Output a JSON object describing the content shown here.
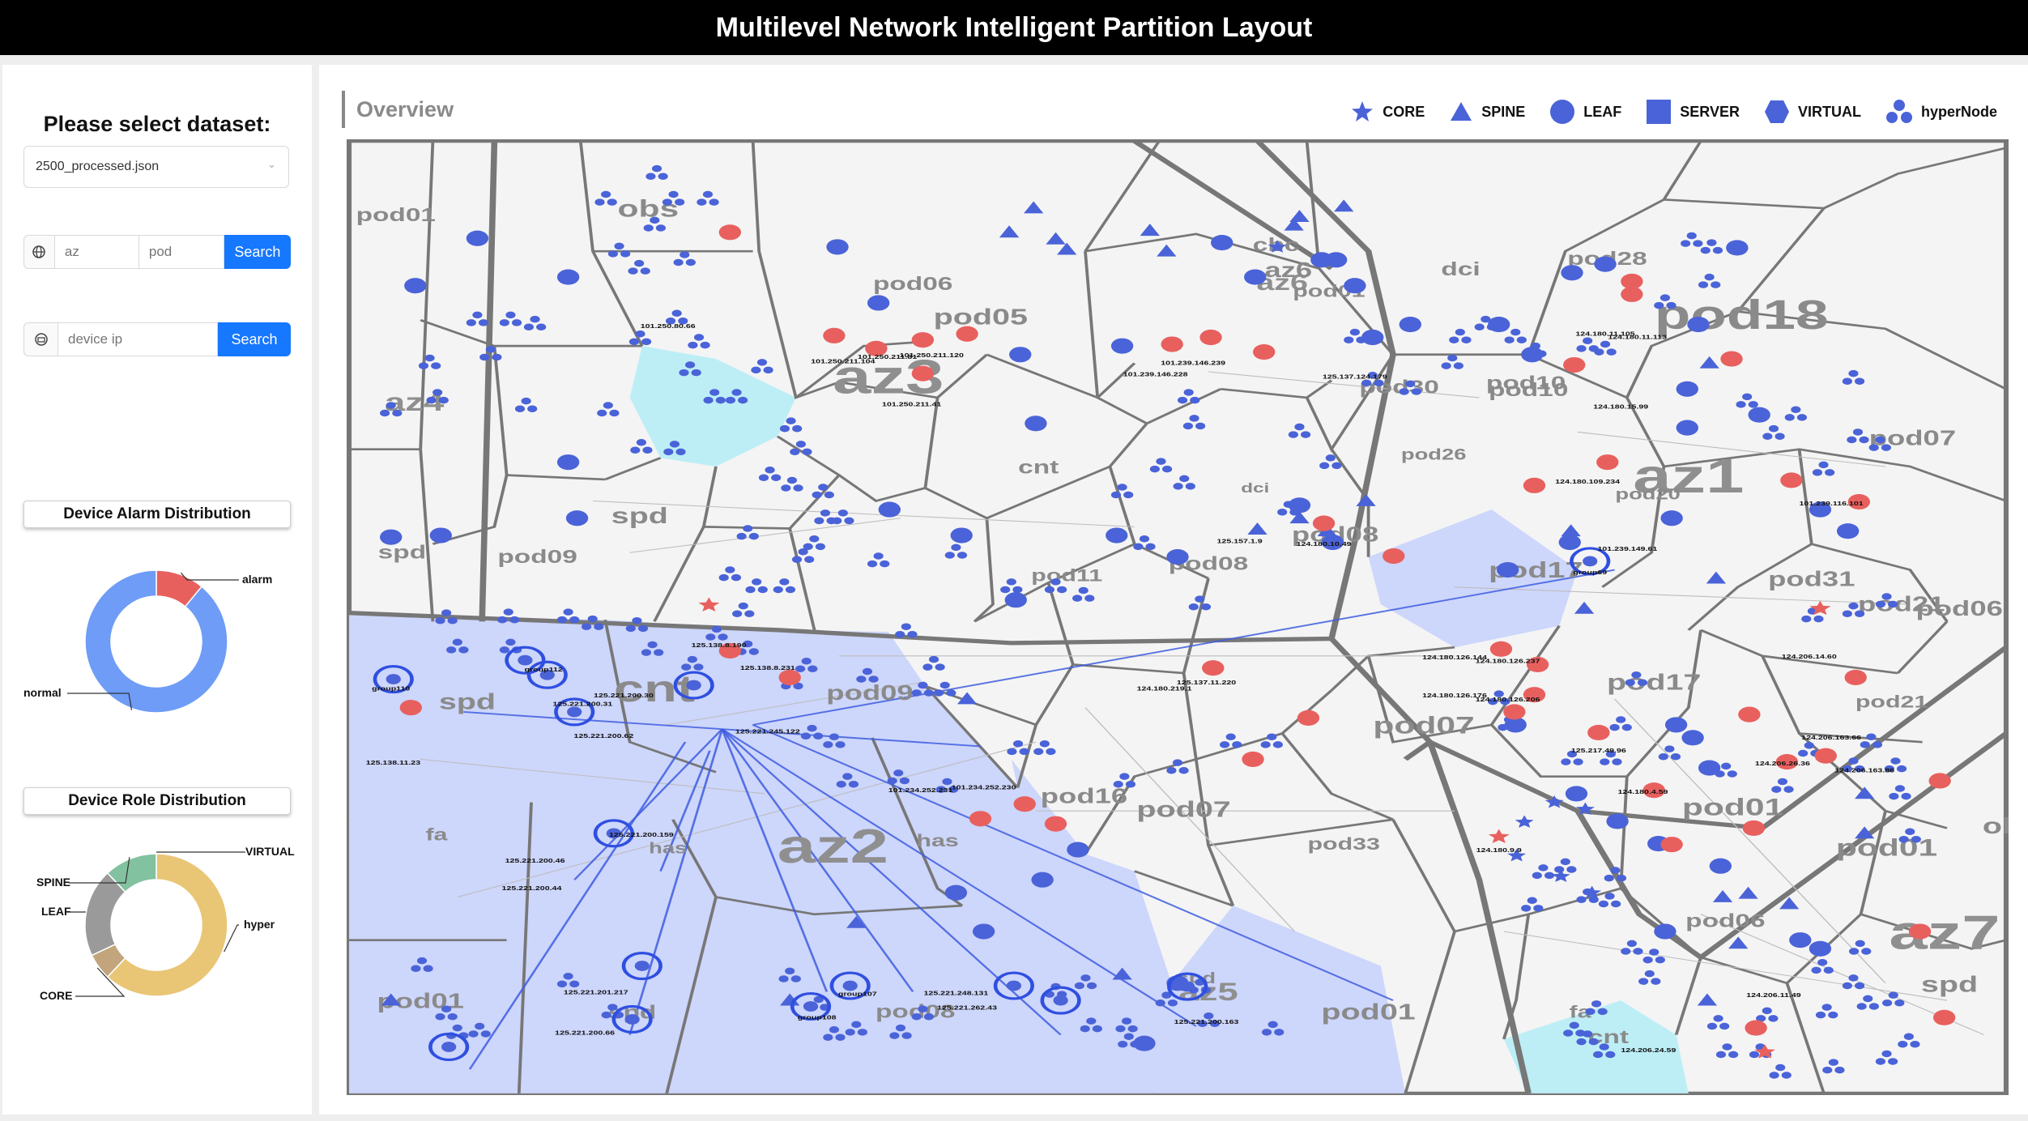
{
  "app_title": "Multilevel Network Intelligent Partition Layout",
  "dataset_prompt": "Please select dataset:",
  "dataset_selected": "2500_processed.json",
  "search1": {
    "az_placeholder": "az",
    "pod_placeholder": "pod",
    "button": "Search"
  },
  "search2": {
    "ip_placeholder": "device ip",
    "button": "Search"
  },
  "alarm_card": {
    "title": "Device Alarm Distribution"
  },
  "role_card": {
    "title": "Device Role Distribution"
  },
  "overview_title": "Overview",
  "legend": [
    "CORE",
    "SPINE",
    "LEAF",
    "SERVER",
    "VIRTUAL",
    "hyperNode"
  ],
  "colors": {
    "blue": "#4a63d8",
    "red": "#e8605e",
    "highlight_blue": "#cdd6fb",
    "highlight_cyan": "#bdeef6",
    "search_btn": "#1677ff"
  },
  "alarm_donut": {
    "slices": [
      {
        "label": "alarm",
        "value": 0.11,
        "color": "#e8605e"
      },
      {
        "label": "normal",
        "value": 0.89,
        "color": "#6e9cf6"
      }
    ]
  },
  "role_donut": {
    "slices": [
      {
        "label": "VIRTUAL",
        "value": 0.0,
        "color": "#e9c675"
      },
      {
        "label": "hyper",
        "value": 0.62,
        "color": "#e9c675"
      },
      {
        "label": "CORE",
        "value": 0.06,
        "color": "#c2a57c"
      },
      {
        "label": "LEAF",
        "value": 0.2,
        "color": "#9a9a9a"
      },
      {
        "label": "SPINE",
        "value": 0.12,
        "color": "#83c2a0"
      }
    ]
  },
  "network": {
    "az_labels": [
      "az4",
      "az3",
      "az6",
      "az1",
      "az2",
      "az7",
      "az5"
    ],
    "pod_labels": [
      "pod01",
      "obs",
      "pod06",
      "pod05",
      "cbc",
      "az6",
      "pod01",
      "dci",
      "pod28",
      "pod18",
      "pod10",
      "az4",
      "cnt",
      "pod30",
      "pod10",
      "pod07",
      "pod26",
      "spd",
      "dci",
      "pod20",
      "spd",
      "pod09",
      "pod08",
      "pod17",
      "pod31",
      "pod21",
      "pod11",
      "pod08",
      "pod06",
      "spd",
      "pod09",
      "cnt",
      "pod17",
      "pod07",
      "obs",
      "pod07",
      "pod21",
      "pod16",
      "has",
      "pod01",
      "fa",
      "dci",
      "has",
      "pod33",
      "pod01",
      "obs",
      "pod01",
      "pod06",
      "fa",
      "spd",
      "pod01",
      "pod08",
      "spd",
      "cnt",
      "fa",
      "spd"
    ],
    "ip_labels": [
      "101.250.80.66",
      "101.250.211.81",
      "101.250.211.120",
      "101.250.211.104",
      "101.250.211.41",
      "101.239.146.239",
      "101.239.146.228",
      "125.137.124.179",
      "124.180.15.99",
      "124.180.11.105",
      "124.180.11.113",
      "124.180.109.234",
      "125.157.1.9",
      "124.180.10.49",
      "101.239.149.61",
      "125.138.8.190",
      "125.138.8.231",
      "125.221.245.122",
      "125.138.11.23",
      "125.221.200.30",
      "125.221.200.31",
      "125.221.200.62",
      "125.137.11.220",
      "124.180.219.1",
      "124.180.126.144",
      "124.180.126.237",
      "124.180.126.176",
      "124.180.126.206",
      "125.217.49.96",
      "124.180.4.59",
      "124.206.14.60",
      "124.206.26.36",
      "124.206.163.66",
      "124.206.163.86",
      "101.234.252.231",
      "101.234.252.230",
      "125.221.200.46",
      "125.221.200.44",
      "125.221.200.159",
      "125.221.200.66",
      "125.221.201.217",
      "125.221.248.131",
      "125.221.262.43",
      "125.221.200.163",
      "124.180.9.9",
      "124.206.24.59",
      "124.206.11.49",
      "101.239.116.101"
    ],
    "group_labels": [
      "group112",
      "group110",
      "group69",
      "group108",
      "group107"
    ]
  }
}
